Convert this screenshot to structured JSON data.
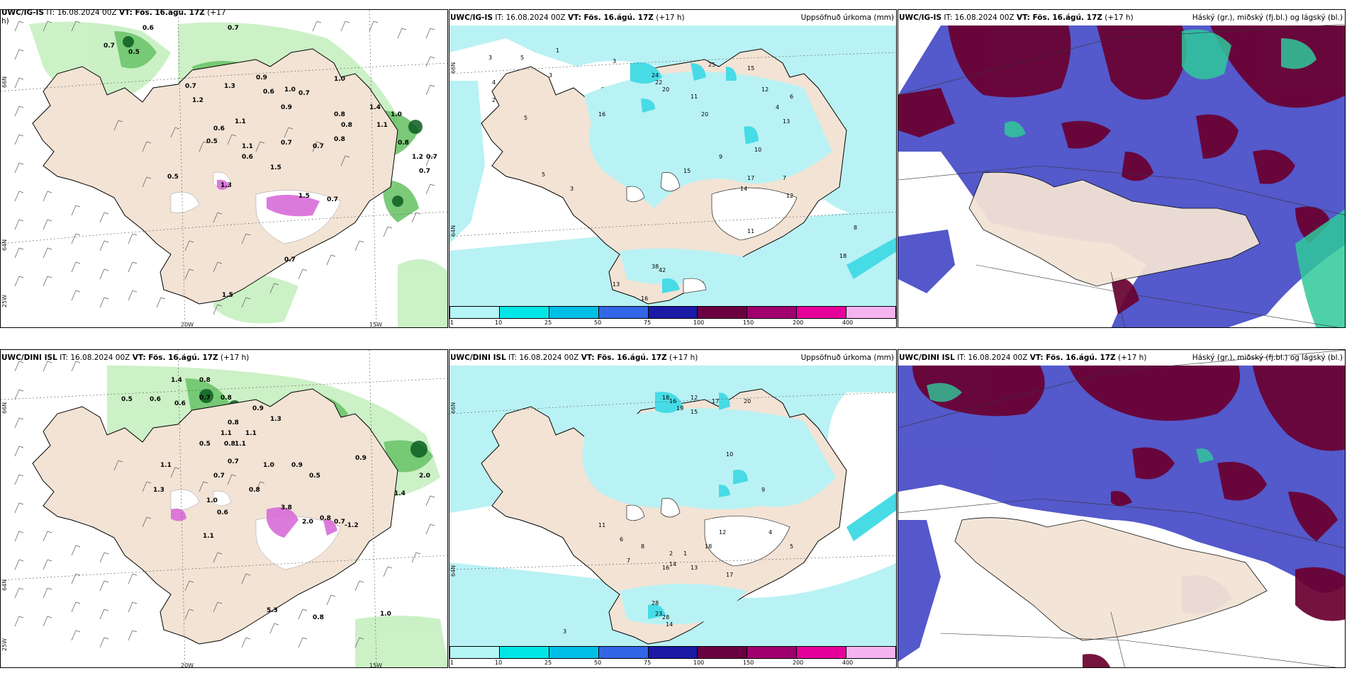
{
  "top_row": {
    "panel1": {
      "title_model": "UWC/IG-IS",
      "title_rest": " IT: 16.08.2024 00Z ",
      "title_vt": "VT: Fös. 16.ágú. 17Z",
      "title_lead": " (+17",
      "title_lead2": "h)",
      "lat_label_1": "66N",
      "lat_label_2": "64N",
      "lat_label_3": "25W",
      "lon_label_1": "20W",
      "lon_label_2": "15W",
      "cloud_labels": [
        "0.6",
        "0.7",
        "0.5",
        "0.7",
        "0.9",
        "0.6",
        "1.3",
        "1.0",
        "1.2",
        "0.7",
        "0.9",
        "0.7",
        "0.6",
        "1.1",
        "0.8",
        "0.8",
        "0.5",
        "1.1",
        "0.6",
        "0.7",
        "0.7",
        "0.8",
        "0.5",
        "1.3",
        "1.0",
        "1.4",
        "1.0",
        "0.8",
        "1.2",
        "0.7",
        "0.7",
        "1.5",
        "1.5",
        "0.7",
        "1.1",
        "0.7",
        "1.5"
      ]
    },
    "panel2": {
      "title_model": "UWC/IG-IS",
      "title_rest": " IT: 16.08.2024 00Z ",
      "title_vt": "VT: Fös. 16.ágú. 17Z",
      "title_lead": " (+17 h)",
      "right_label": "Uppsöfnuð úrkoma (mm)",
      "lat_label_1": "66N",
      "lat_label_2": "64N",
      "precip_labels": [
        "3",
        "5",
        "4",
        "2",
        "1",
        "3",
        "5",
        "3",
        "5",
        "3",
        "24",
        "22",
        "20",
        "11",
        "25",
        "15",
        "12",
        "20",
        "16",
        "6",
        "13",
        "10",
        "4",
        "9",
        "8",
        "18",
        "12",
        "7",
        "17",
        "14",
        "15",
        "11",
        "16",
        "13",
        "38",
        "42"
      ]
    },
    "panel3": {
      "title_model": "UWC/IG-IS",
      "title_rest": " IT: 16.08.2024 00Z ",
      "title_vt": "VT: Fös. 16.ágú. 17Z",
      "title_lead": " (+17 h)",
      "right_label": "Háský (gr.), miðský (fj.bl.) og lágský (bl.)"
    }
  },
  "bottom_row": {
    "panel1": {
      "title_model": "UWC/DINI ISL",
      "title_rest": " IT: 16.08.2024 00Z ",
      "title_vt": "VT: Fös. 16.ágú. 17Z",
      "title_lead": " (+17 h)",
      "lat_label_1": "66N",
      "lat_label_2": "64N",
      "lat_label_3": "25W",
      "lon_label_1": "20W",
      "lon_label_2": "15W",
      "cloud_labels": [
        "1.4",
        "0.8",
        "0.6",
        "0.5",
        "0.6",
        "0.7",
        "0.8",
        "0.9",
        "1.3",
        "1.1",
        "0.8",
        "1.1",
        "0.8",
        "0.5",
        "1.1",
        "0.7",
        "1.1",
        "1.0",
        "0.9",
        "0.5",
        "1.3",
        "0.7",
        "1.0",
        "0.8",
        "0.6",
        "3.8",
        "2.0",
        "0.8",
        "0.7",
        "-1.2",
        "0.8",
        "1.1",
        "0.9",
        "1.4",
        "5.3",
        "1.0",
        "2.0"
      ]
    },
    "panel2": {
      "title_model": "UWC/DINI ISL",
      "title_rest": " IT: 16.08.2024 00Z ",
      "title_vt": "VT: Fös. 16.ágú. 17Z",
      "title_lead": " (+17 h)",
      "right_label": "Uppsöfnuð úrkoma (mm)",
      "lat_label_1": "66N",
      "lat_label_2": "64N",
      "precip_labels": [
        "3",
        "2",
        "1",
        "4",
        "5",
        "9",
        "12",
        "18",
        "16",
        "19",
        "15",
        "17",
        "20",
        "10",
        "11",
        "6",
        "8",
        "7",
        "13",
        "17",
        "16",
        "14",
        "18",
        "12",
        "28",
        "23",
        "28",
        "14"
      ]
    },
    "panel3": {
      "title_model": "UWC/DINI ISL",
      "title_rest": " IT: 16.08.2024 00Z ",
      "title_vt": "VT: Fös. 16.ágú. 17Z",
      "title_lead": " (+17 h)",
      "right_label": "Háský (gr.), miðský (fj.bl.) og lágský (bl.)"
    }
  },
  "colorbar": {
    "ticks": [
      "1",
      "10",
      "25",
      "50",
      "75",
      "100",
      "150",
      "200",
      "400"
    ],
    "colors": [
      "#b4f5f5",
      "#00e6e6",
      "#00bfe6",
      "#3366e6",
      "#1a1aa6",
      "#6b0040",
      "#a0006e",
      "#e6009a",
      "#f5b4f0"
    ]
  },
  "colors": {
    "land": "#f2e3d5",
    "ocean": "#ffffff",
    "precip_light": "#b9f2f4",
    "precip_med": "#47dbe6",
    "cloud_light": "#c6efc0",
    "cloud_med": "#6dc46b",
    "cloud_dark": "#0b5e1f",
    "convective": "#d86cd8",
    "high_cloud": "#6a0030",
    "mid_cloud": "#4b50c8",
    "low_cloud": "#2fc99a"
  }
}
